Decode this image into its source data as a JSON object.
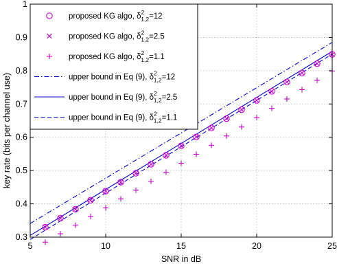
{
  "chart_data": {
    "type": "line",
    "title": "",
    "xlabel": "SNR in dB",
    "ylabel": "key rate (bits per channel use)",
    "xlim": [
      5,
      25
    ],
    "ylim": [
      0.3,
      1.0
    ],
    "xticks": [
      5,
      10,
      15,
      20,
      25
    ],
    "yticks": [
      0.3,
      0.4,
      0.5,
      0.6,
      0.7,
      0.8,
      0.9,
      1.0
    ],
    "ytick_labels": [
      "0.3",
      "0.4",
      "0.5",
      "0.6",
      "0.7",
      "0.8",
      "0.9",
      "1"
    ],
    "grid": true,
    "legend_position": "top-left",
    "colors": {
      "marker": "#cc00cc",
      "line": "#0000cc",
      "axis": "#000000",
      "grid": "#b0b0b0"
    },
    "x": [
      6,
      7,
      8,
      9,
      10,
      11,
      12,
      13,
      14,
      15,
      16,
      17,
      18,
      19,
      20,
      21,
      22,
      23,
      24,
      25
    ],
    "series": [
      {
        "legend_prefix": "proposed KG algo, ",
        "legend_value": "=12",
        "style": "circle",
        "values": [
          0.33,
          0.357,
          0.384,
          0.411,
          0.438,
          0.465,
          0.492,
          0.519,
          0.546,
          0.574,
          0.601,
          0.628,
          0.656,
          0.683,
          0.711,
          0.738,
          0.766,
          0.793,
          0.821,
          0.849
        ]
      },
      {
        "legend_prefix": "proposed KG algo, ",
        "legend_value": "=2.5",
        "style": "x",
        "values": [
          0.33,
          0.357,
          0.384,
          0.411,
          0.438,
          0.465,
          0.492,
          0.519,
          0.546,
          0.574,
          0.601,
          0.628,
          0.656,
          0.683,
          0.711,
          0.738,
          0.766,
          0.793,
          0.821,
          0.849
        ]
      },
      {
        "legend_prefix": "proposed KG algo, ",
        "legend_value": "=1.1",
        "style": "plus",
        "values": [
          0.285,
          0.31,
          0.336,
          0.362,
          0.388,
          0.415,
          0.441,
          0.468,
          0.495,
          0.522,
          0.549,
          0.576,
          0.604,
          0.631,
          0.659,
          0.687,
          0.715,
          0.743,
          0.771,
          0.799
        ]
      },
      {
        "legend_prefix": "upper bound in Eq (9), ",
        "legend_value": "=12",
        "style": "dashdot",
        "x_range": [
          5,
          25
        ],
        "y_range": [
          0.341,
          0.885
        ]
      },
      {
        "legend_prefix": "upper bound in Eq (9), ",
        "legend_value": "=2.5",
        "style": "solid",
        "x_range": [
          5,
          25
        ],
        "y_range": [
          0.305,
          0.858
        ]
      },
      {
        "legend_prefix": "upper bound in Eq (9), ",
        "legend_value": "=1.1",
        "style": "dashed",
        "x_range": [
          5,
          25
        ],
        "y_range": [
          0.293,
          0.85
        ]
      }
    ],
    "legend_symbol": {
      "base": "δ",
      "sup": "2",
      "sub": "1,2"
    }
  }
}
